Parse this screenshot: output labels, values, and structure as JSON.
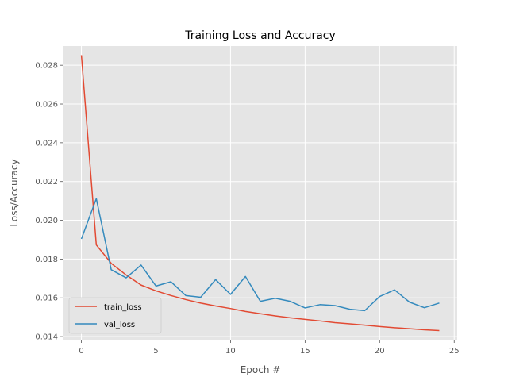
{
  "chart_data": {
    "type": "line",
    "title": "Training Loss and Accuracy",
    "xlabel": "Epoch #",
    "ylabel": "Loss/Accuracy",
    "xlim": [
      -1.2,
      25.2
    ],
    "ylim": [
      0.01384,
      0.02899
    ],
    "xticks": [
      0,
      5,
      10,
      15,
      20,
      25
    ],
    "yticks": [
      0.014,
      0.016,
      0.018,
      0.02,
      0.022,
      0.024,
      0.026,
      0.028
    ],
    "xtick_labels": [
      "0",
      "5",
      "10",
      "15",
      "20",
      "25"
    ],
    "ytick_labels": [
      "0.014",
      "0.016",
      "0.018",
      "0.020",
      "0.022",
      "0.024",
      "0.026",
      "0.028"
    ],
    "grid": true,
    "legend_position": "lower-left",
    "x": [
      0,
      1,
      2,
      3,
      4,
      5,
      6,
      7,
      8,
      9,
      10,
      11,
      12,
      13,
      14,
      15,
      16,
      17,
      18,
      19,
      20,
      21,
      22,
      23,
      24
    ],
    "series": [
      {
        "name": "train_loss",
        "color": "#E24A33",
        "values": [
          0.02852,
          0.01873,
          0.01778,
          0.01718,
          0.01666,
          0.01636,
          0.01612,
          0.01591,
          0.01573,
          0.01558,
          0.01545,
          0.0153,
          0.01518,
          0.01507,
          0.01497,
          0.01489,
          0.01481,
          0.01472,
          0.01466,
          0.01459,
          0.01452,
          0.01446,
          0.01441,
          0.01435,
          0.01431
        ]
      },
      {
        "name": "val_loss",
        "color": "#348ABD",
        "values": [
          0.01904,
          0.02112,
          0.01745,
          0.01703,
          0.01769,
          0.01661,
          0.01683,
          0.01612,
          0.01603,
          0.01694,
          0.01618,
          0.0171,
          0.01582,
          0.01598,
          0.01582,
          0.01548,
          0.01565,
          0.0156,
          0.01541,
          0.01534,
          0.01607,
          0.01641,
          0.01578,
          0.01549,
          0.01573
        ]
      }
    ]
  },
  "style": {
    "plot_background": "#E5E5E5",
    "grid_color": "#FFFFFF",
    "text_color": "#555555"
  }
}
